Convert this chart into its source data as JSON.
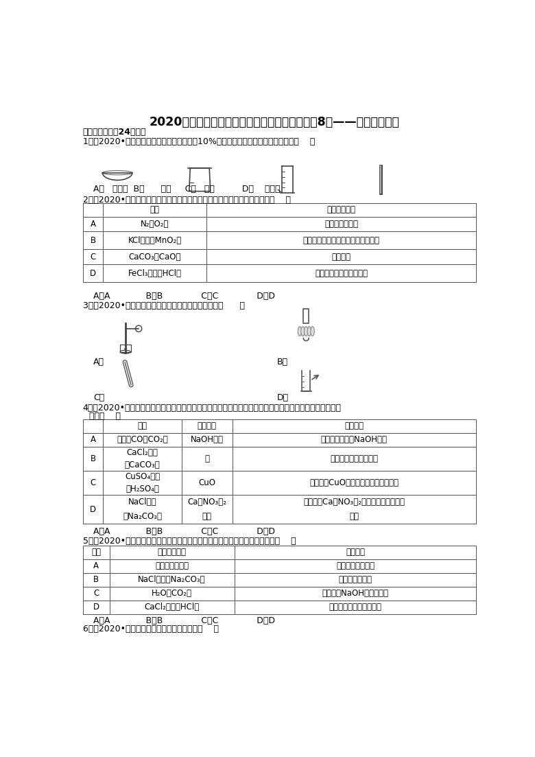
{
  "title": "2020年上海市中考化学各区模拟考试试题分类（8）——化学实验探究",
  "section1": "一．选择题（共24小题）",
  "q1": "1．（2020•浦东新区三模）用纯碱固体配制10%的碳酸钠溶液，无需使用的仪器是（    ）",
  "q1_label_A": "A．   蒸发皿",
  "q1_label_B": "B．      烧杯",
  "q1_label_C": "C．   量筒",
  "q1_label_D": "D．    玻璃棒",
  "q2": "2．（2020•浦东新区三模）以下提纯实验方案不合理的是（括号内为杂质）（    ）",
  "q2_headers": [
    "",
    "物质",
    "提纯实验方案"
  ],
  "q2_rows": [
    [
      "A",
      "N₂（O₂）",
      "通过灼热的铜网"
    ],
    [
      "B",
      "KCl固体（MnO₂）",
      "加入足量的水溶解，过滤，蒸发结晶"
    ],
    [
      "C",
      "CaCO₃（CaO）",
      "高温灼烧"
    ],
    [
      "D",
      "FeCl₃溶液（HCl）",
      "加入过量的氧化铁，过滤"
    ]
  ],
  "q2_answer": "A．A             B．B              C．C              D．D",
  "q3": "3．（2020•普陀区二模）下列实验操作中，正确的是（      ）",
  "q4_line1": "4．（2020•普陀区二模）要除去物质中的杂质（括号内为杂质）得到纯净物，所选用试剂和操作方法都正确",
  "q4_line2": "的是（    ）",
  "q4_headers": [
    "",
    "物质",
    "选用试剂",
    "操作方法"
  ],
  "q4_rows": [
    [
      "A",
      "干燥的CO（CO₂）",
      "NaOH溶液",
      "将气体缓缓通过NaOH溶液"
    ],
    [
      "B",
      "CaCl₂固体\n（CaCO₃）",
      "水",
      "加足量的水溶解，过滤"
    ],
    [
      "C",
      "CuSO₄溶液\n（H₂SO₄）",
      "CuO",
      "加入过量CuO粉末，充分反应后，过滤"
    ],
    [
      "D",
      "NaCl溶液\n（Na₂CO₃）",
      "Ca（NO₃）₂\n溶液",
      "加入过量Ca（NO₃）₂溶液，充分反应后，\n过滤"
    ]
  ],
  "q4_answer": "A．A             B．B              C．C              D．D",
  "q5": "5．（2020•杨浦区二模）为除去各物质中混有的少量杂质，采用方案正确的是（    ）",
  "q5_headers": [
    "选项",
    "物质（杂质）",
    "除杂方案"
  ],
  "q5_rows": [
    [
      "A",
      "铜粉（氧化铜）",
      "在空气中充分灼烧"
    ],
    [
      "B",
      "NaCl溶液（Na₂CO₃）",
      "加入适量稀硫酸"
    ],
    [
      "C",
      "H₂O（CO₂）",
      "通过足量NaOH固体，干燥"
    ],
    [
      "D",
      "CaCl₂溶液（HCl）",
      "加入过量碳酸钙粉，过滤"
    ]
  ],
  "q5_answer": "A．A             B．B              C．C              D．D",
  "q6": "6．（2020•崇明区二模）实验操作正确的是（    ）",
  "bg_color": "#ffffff",
  "text_color": "#000000",
  "font_size_title": 12.5,
  "font_size_body": 9.0,
  "font_size_table": 8.5
}
